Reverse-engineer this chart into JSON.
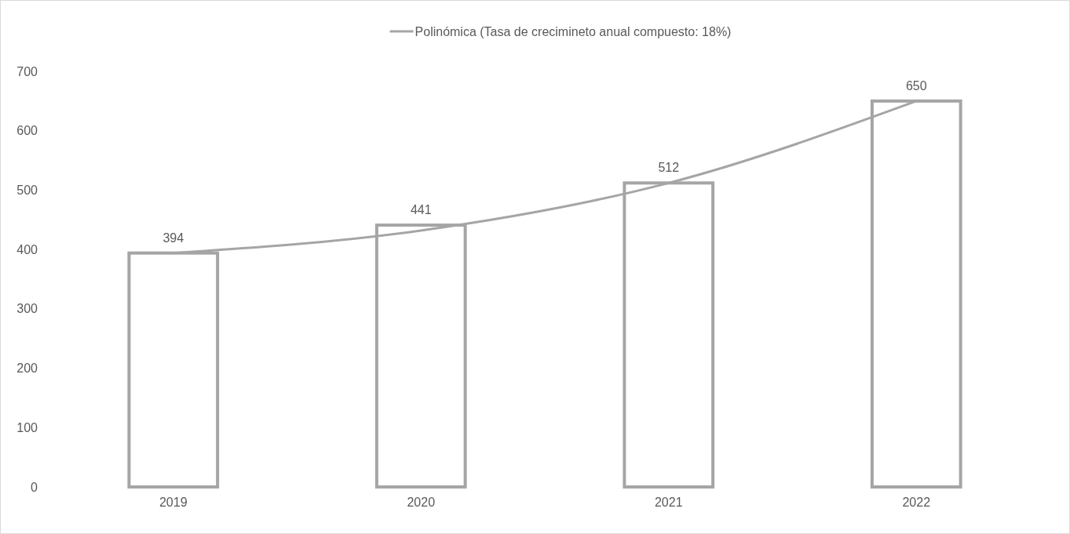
{
  "chart_data": {
    "type": "bar",
    "categories": [
      "2019",
      "2020",
      "2021",
      "2022"
    ],
    "series": [
      {
        "color": "#a5a5a5",
        "values": [
          394,
          441,
          512,
          650
        ],
        "value_labels": [
          "394",
          "441",
          "512",
          "650"
        ]
      },
      {
        "type": "line",
        "name": "Polinómica (Tasa de crecimineto anual compuesto: 18%)",
        "color": "#a5a5a5",
        "values": [
          394,
          432,
          512,
          650
        ]
      }
    ],
    "ylim": [
      0,
      700
    ],
    "yticks": [
      0,
      100,
      200,
      300,
      400,
      500,
      600,
      700
    ],
    "grid": false,
    "legend": "top",
    "marker": "none",
    "line_style": "solid"
  }
}
